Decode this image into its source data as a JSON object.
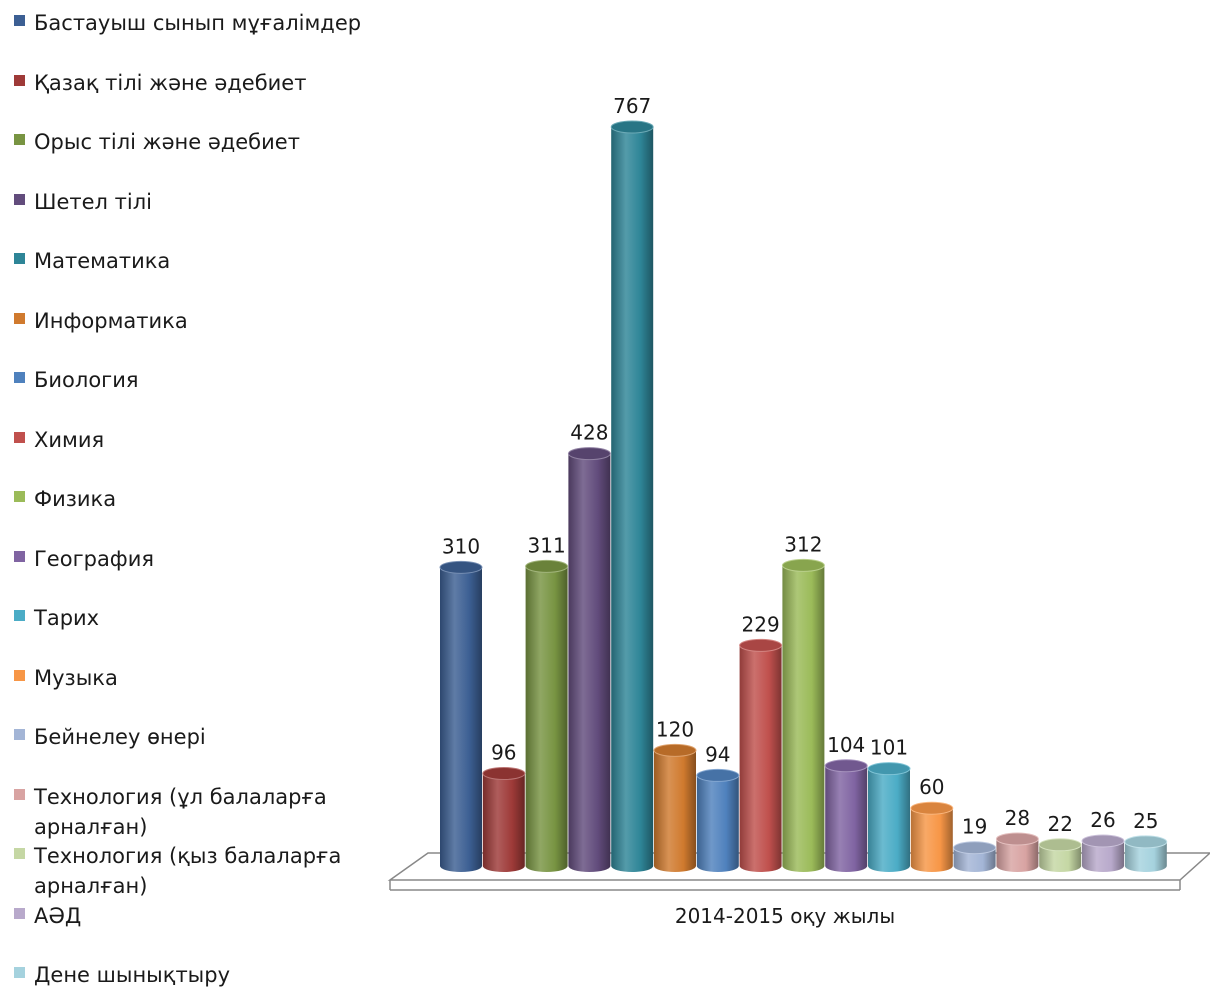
{
  "chart_data": {
    "type": "bar",
    "categories": [
      "2014-2015 оқу жылы"
    ],
    "series": [
      {
        "name": "Бастауыш сынып мұғалімдер",
        "values": [
          310
        ],
        "color": "#3C5F93"
      },
      {
        "name": "Қазақ тілі және әдебиет",
        "values": [
          96
        ],
        "color": "#9E3A38"
      },
      {
        "name": "Орыс тілі және әдебиет",
        "values": [
          311
        ],
        "color": "#789442"
      },
      {
        "name": "Шетел тілі",
        "values": [
          428
        ],
        "color": "#624C7C"
      },
      {
        "name": "Математика",
        "values": [
          767
        ],
        "color": "#2E8597"
      },
      {
        "name": "Информатика",
        "values": [
          120
        ],
        "color": "#D07A2E"
      },
      {
        "name": "Биология",
        "values": [
          94
        ],
        "color": "#4F81BD"
      },
      {
        "name": "Химия",
        "values": [
          229
        ],
        "color": "#C0504D"
      },
      {
        "name": "Физика",
        "values": [
          312
        ],
        "color": "#9BBB59"
      },
      {
        "name": "География",
        "values": [
          104
        ],
        "color": "#8064A2"
      },
      {
        "name": "Тарих",
        "values": [
          101
        ],
        "color": "#4BACC6"
      },
      {
        "name": "Музыка",
        "values": [
          60
        ],
        "color": "#F79646"
      },
      {
        "name": "Бейнелеу өнері",
        "values": [
          19
        ],
        "color": "#A3B5D6"
      },
      {
        "name": "Технология (ұл балаларға арналған)",
        "values": [
          28
        ],
        "color": "#D8A3A2"
      },
      {
        "name": "Технология (қыз балаларға арналған)",
        "values": [
          22
        ],
        "color": "#C5D7A4"
      },
      {
        "name": "АӘД",
        "values": [
          26
        ],
        "color": "#B8A9CB"
      },
      {
        "name": "Дене шынықтыру",
        "values": [
          25
        ],
        "color": "#A5D2DE"
      }
    ],
    "ylim": [
      0,
      800
    ],
    "grid": false,
    "legend": "left",
    "data_labels": true
  }
}
